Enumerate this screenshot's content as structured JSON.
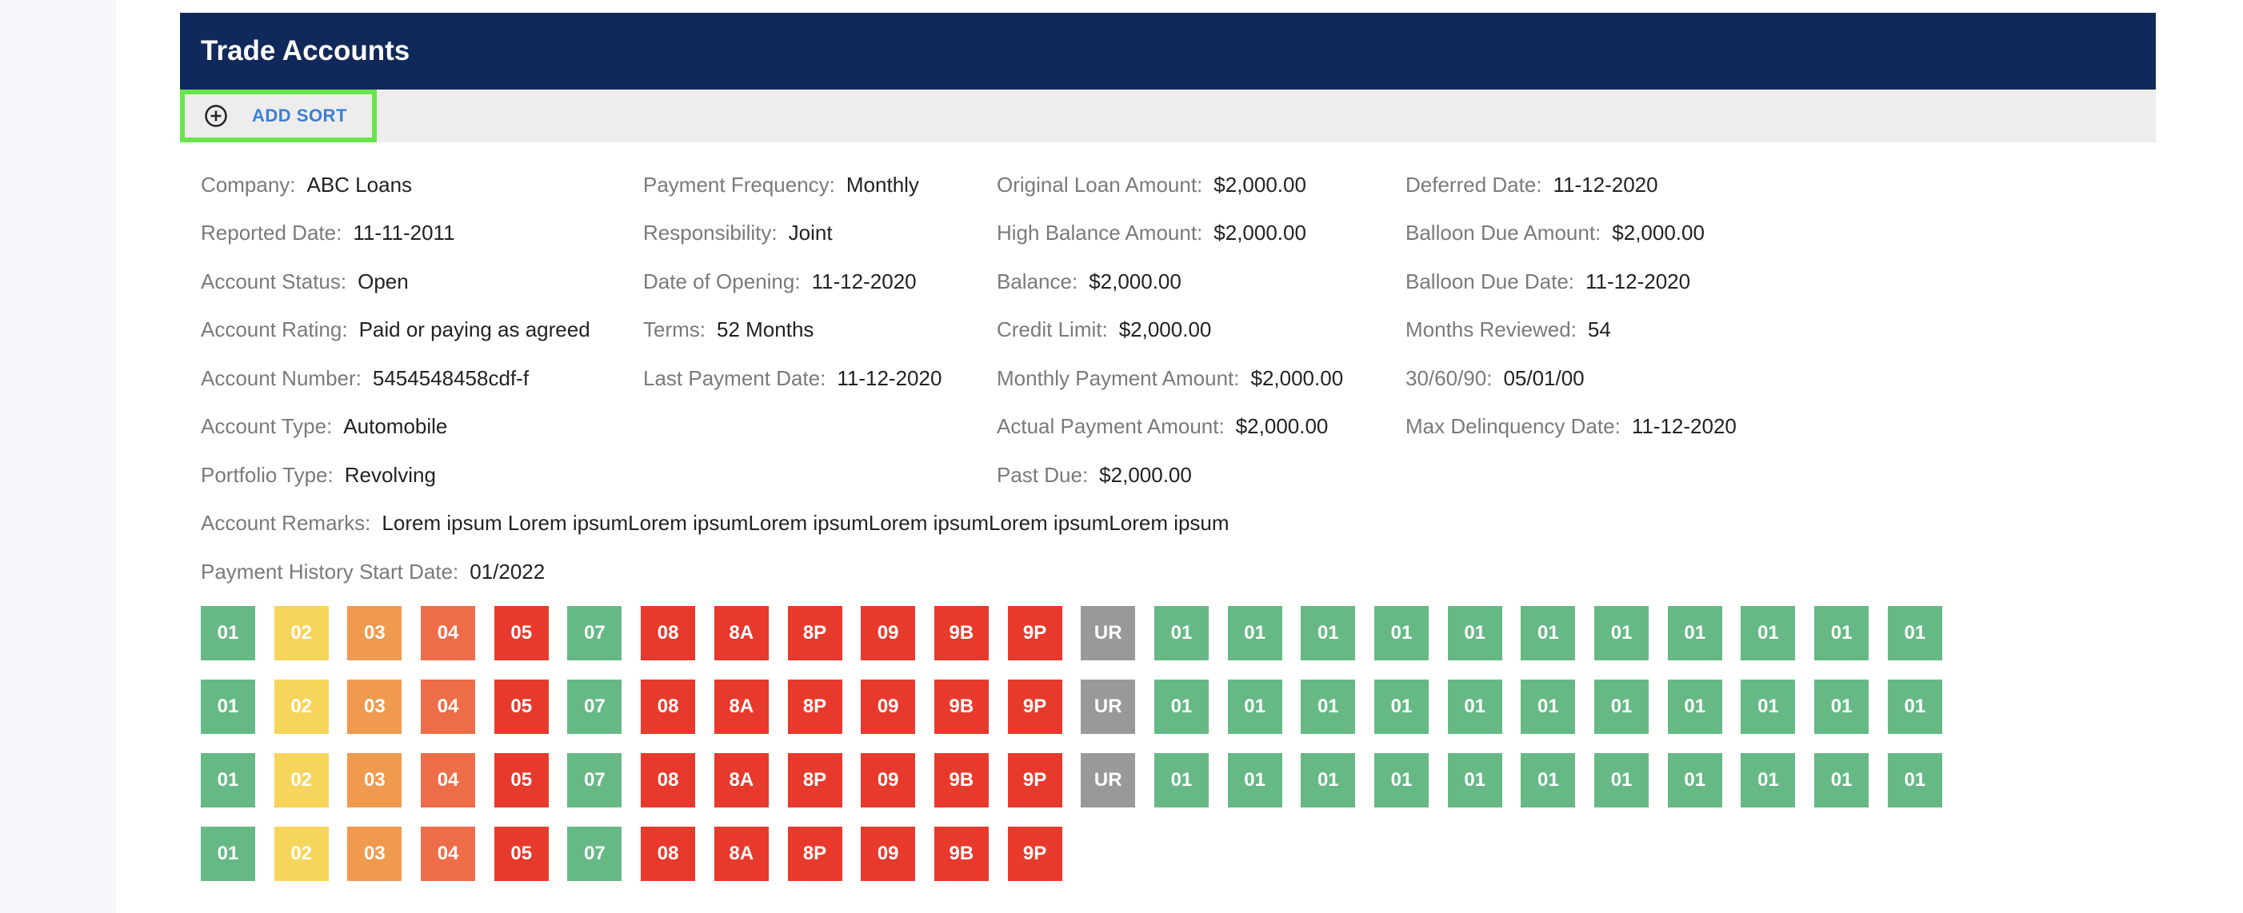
{
  "header": {
    "title": "Trade Accounts"
  },
  "toolbar": {
    "add_sort_label": "ADD SORT"
  },
  "fields": {
    "company": {
      "label": "Company:",
      "value": "ABC Loans"
    },
    "reported_date": {
      "label": "Reported Date:",
      "value": "11-11-2011"
    },
    "account_status": {
      "label": "Account Status:",
      "value": "Open"
    },
    "account_rating": {
      "label": "Account Rating:",
      "value": "Paid or paying as agreed"
    },
    "account_number": {
      "label": "Account Number:",
      "value": "5454548458cdf-f"
    },
    "account_type": {
      "label": "Account Type:",
      "value": "Automobile"
    },
    "portfolio_type": {
      "label": "Portfolio Type:",
      "value": "Revolving"
    },
    "payment_frequency": {
      "label": "Payment Frequency:",
      "value": "Monthly"
    },
    "responsibility": {
      "label": "Responsibility:",
      "value": "Joint"
    },
    "date_of_opening": {
      "label": "Date of Opening:",
      "value": "11-12-2020"
    },
    "terms": {
      "label": "Terms:",
      "value": "52 Months"
    },
    "last_payment_date": {
      "label": "Last Payment Date:",
      "value": "11-12-2020"
    },
    "original_loan_amount": {
      "label": "Original Loan Amount:",
      "value": "$2,000.00"
    },
    "high_balance_amount": {
      "label": "High Balance Amount:",
      "value": "$2,000.00"
    },
    "balance": {
      "label": "Balance:",
      "value": "$2,000.00"
    },
    "credit_limit": {
      "label": "Credit Limit:",
      "value": "$2,000.00"
    },
    "monthly_payment_amount": {
      "label": "Monthly Payment Amount:",
      "value": "$2,000.00"
    },
    "actual_payment_amount": {
      "label": "Actual Payment Amount:",
      "value": "$2,000.00"
    },
    "past_due": {
      "label": "Past Due:",
      "value": "$2,000.00"
    },
    "deferred_date": {
      "label": "Deferred Date:",
      "value": "11-12-2020"
    },
    "balloon_due_amount": {
      "label": "Balloon Due Amount:",
      "value": "$2,000.00"
    },
    "balloon_due_date": {
      "label": "Balloon Due Date:",
      "value": "11-12-2020"
    },
    "months_reviewed": {
      "label": "Months Reviewed:",
      "value": "54"
    },
    "thirty_sixty_ninety": {
      "label": "30/60/90:",
      "value": "05/01/00"
    },
    "max_delinquency_date": {
      "label": "Max Delinquency Date:",
      "value": "11-12-2020"
    },
    "account_remarks": {
      "label": "Account Remarks:",
      "value": "Lorem ipsum Lorem ipsumLorem ipsumLorem ipsumLorem ipsumLorem ipsumLorem ipsum"
    },
    "payment_history_start_date": {
      "label": "Payment History Start Date:",
      "value": "01/2022"
    }
  },
  "status_colors": {
    "01": "#66b985",
    "02": "#f7d45a",
    "03": "#ef9a4f",
    "04": "#ec6d48",
    "05": "#e83a2c",
    "07": "#66b985",
    "08": "#e83a2c",
    "8A": "#e83a2c",
    "8P": "#e83a2c",
    "09": "#e83a2c",
    "9B": "#e83a2c",
    "9P": "#e83a2c",
    "UR": "#999999"
  },
  "payment_history": [
    [
      "01",
      "02",
      "03",
      "04",
      "05",
      "07",
      "08",
      "8A",
      "8P",
      "09",
      "9B",
      "9P",
      "UR",
      "01",
      "01",
      "01",
      "01",
      "01",
      "01",
      "01",
      "01",
      "01",
      "01",
      "01"
    ],
    [
      "01",
      "02",
      "03",
      "04",
      "05",
      "07",
      "08",
      "8A",
      "8P",
      "09",
      "9B",
      "9P",
      "UR",
      "01",
      "01",
      "01",
      "01",
      "01",
      "01",
      "01",
      "01",
      "01",
      "01",
      "01"
    ],
    [
      "01",
      "02",
      "03",
      "04",
      "05",
      "07",
      "08",
      "8A",
      "8P",
      "09",
      "9B",
      "9P",
      "UR",
      "01",
      "01",
      "01",
      "01",
      "01",
      "01",
      "01",
      "01",
      "01",
      "01",
      "01"
    ],
    [
      "01",
      "02",
      "03",
      "04",
      "05",
      "07",
      "08",
      "8A",
      "8P",
      "09",
      "9B",
      "9P"
    ]
  ]
}
